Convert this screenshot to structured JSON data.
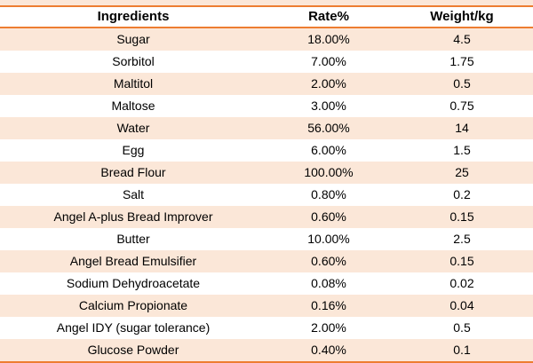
{
  "table": {
    "columns": [
      "Ingredients",
      "Rate%",
      "Weight/kg"
    ],
    "rows": [
      {
        "ingredient": "Sugar",
        "rate": "18.00%",
        "weight": "4.5"
      },
      {
        "ingredient": "Sorbitol",
        "rate": "7.00%",
        "weight": "1.75"
      },
      {
        "ingredient": "Maltitol",
        "rate": "2.00%",
        "weight": "0.5"
      },
      {
        "ingredient": "Maltose",
        "rate": "3.00%",
        "weight": "0.75"
      },
      {
        "ingredient": "Water",
        "rate": "56.00%",
        "weight": "14"
      },
      {
        "ingredient": "Egg",
        "rate": "6.00%",
        "weight": "1.5"
      },
      {
        "ingredient": "Bread Flour",
        "rate": "100.00%",
        "weight": "25"
      },
      {
        "ingredient": "Salt",
        "rate": "0.80%",
        "weight": "0.2"
      },
      {
        "ingredient": "Angel A-plus Bread Improver",
        "rate": "0.60%",
        "weight": "0.15"
      },
      {
        "ingredient": "Butter",
        "rate": "10.00%",
        "weight": "2.5"
      },
      {
        "ingredient": "Angel Bread Emulsifier",
        "rate": "0.60%",
        "weight": "0.15"
      },
      {
        "ingredient": "Sodium Dehydroacetate",
        "rate": "0.08%",
        "weight": "0.02"
      },
      {
        "ingredient": "Calcium Propionate",
        "rate": "0.16%",
        "weight": "0.04"
      },
      {
        "ingredient": "Angel IDY (sugar tolerance)",
        "rate": "2.00%",
        "weight": "0.5"
      },
      {
        "ingredient": "Glucose Powder",
        "rate": "0.40%",
        "weight": "0.1"
      }
    ]
  },
  "colors": {
    "row_shade": "#fbe7d8",
    "border_orange": "#ed7d31",
    "header_bg": "#ffffff",
    "row_white": "#ffffff",
    "text": "#000000"
  }
}
